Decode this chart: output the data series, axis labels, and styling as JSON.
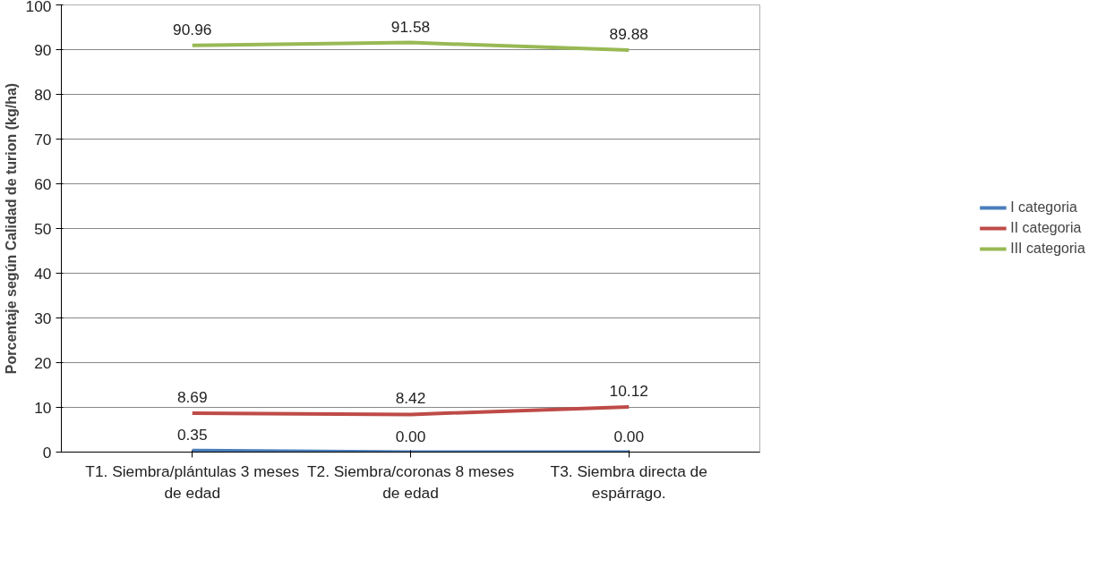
{
  "chart_data": {
    "type": "line",
    "ylabel": "Porcentaje según Calidad de turion (kg/ha)",
    "categories": [
      "T1. Siembra/plántulas 3 meses de edad",
      "T2. Siembra/coronas 8 meses de edad",
      "T3. Siembra directa de espárrago."
    ],
    "series": [
      {
        "name": "I categoria",
        "color": "#4a7ebb",
        "values": [
          0.35,
          0.0,
          0.0
        ],
        "value_labels": [
          "0.35",
          "0.00",
          "0.00"
        ]
      },
      {
        "name": "II categoria",
        "color": "#be4b48",
        "values": [
          8.69,
          8.42,
          10.12
        ],
        "value_labels": [
          "8.69",
          "8.42",
          "10.12"
        ]
      },
      {
        "name": "III categoria",
        "color": "#98b954",
        "values": [
          90.96,
          91.58,
          89.88
        ],
        "value_labels": [
          "90.96",
          "91.58",
          "89.88"
        ]
      }
    ],
    "ylim": [
      0,
      100
    ],
    "yticks": [
      0,
      10,
      20,
      30,
      40,
      50,
      60,
      70,
      80,
      90,
      100
    ],
    "grid": "y",
    "legend": "right",
    "marker": "none",
    "line_style": "solid"
  }
}
